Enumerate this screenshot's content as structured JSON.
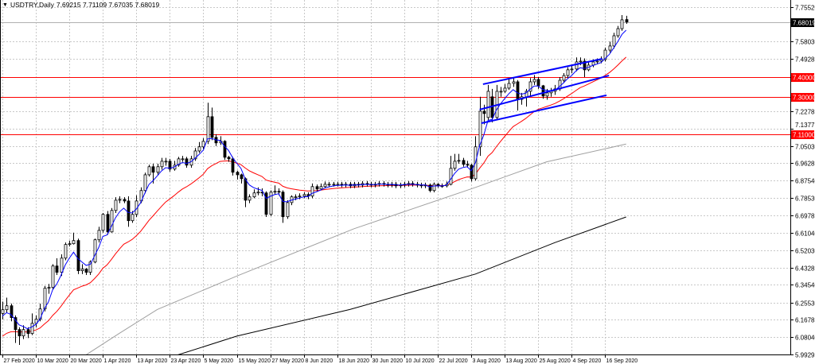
{
  "header": {
    "symbol_timeframe": "USDTRY,Daily",
    "ohlc_text": "7.69215 7.71109 7.67035 7.68019",
    "menu_icon": "triangle-down-icon"
  },
  "chart_data": {
    "type": "candlestick",
    "title": "USDTRY,Daily",
    "ylim": [
      5.9917,
      7.7915
    ],
    "grid": true,
    "colors": {
      "bull_body": "#ffffff",
      "bear_body": "#000000",
      "fast_ma": "#0000ff",
      "slow_ma": "#ff0000",
      "ma_long_1": "#a0a0a0",
      "ma_long_2": "#000000",
      "levels": "#ff0000",
      "trendlines": "#0000ff",
      "grid": "#c8c8c8",
      "current_price": "#000000"
    },
    "fast_ma": {
      "name": "fast moving average",
      "period": 5,
      "seed": 6.17
    },
    "slow_ma": {
      "name": "slow moving average",
      "period": 20,
      "seed": 6.07
    },
    "ma_long_1": {
      "name": "long moving average (grey)",
      "points": [
        [
          20,
          5.99
        ],
        [
          28,
          6.1
        ],
        [
          37,
          6.22
        ],
        [
          56,
          6.39
        ],
        [
          84,
          6.63
        ],
        [
          113,
          6.84
        ],
        [
          130,
          6.97
        ],
        [
          149,
          7.06
        ]
      ]
    },
    "ma_long_2": {
      "name": "long moving average (black)",
      "points": [
        [
          42,
          5.99
        ],
        [
          56,
          6.085
        ],
        [
          83,
          6.22
        ],
        [
          113,
          6.4
        ],
        [
          132,
          6.56
        ],
        [
          149,
          6.69
        ]
      ]
    },
    "horizontal_levels": [
      {
        "price": 7.4,
        "label": "7.40000"
      },
      {
        "price": 7.3,
        "label": "7.30000"
      },
      {
        "price": 7.11,
        "label": "7.11000"
      }
    ],
    "current_price": {
      "price": 7.68019,
      "label": "7.68019"
    },
    "trendlines": [
      {
        "name": "channel-upper",
        "from": [
          114.8,
          7.364
        ],
        "to": [
          143.3,
          7.493
        ]
      },
      {
        "name": "channel-middle",
        "from": [
          114.0,
          7.235
        ],
        "to": [
          144.9,
          7.408
        ]
      },
      {
        "name": "channel-lower",
        "from": [
          114.4,
          7.166
        ],
        "to": [
          144.3,
          7.308
        ]
      }
    ],
    "y_ticks": [
      {
        "value": 7.7552,
        "label": "7.75520"
      },
      {
        "value": 7.5803,
        "label": "7.58030"
      },
      {
        "value": 7.49285,
        "label": "7.49285"
      },
      {
        "value": 7.22785,
        "label": "7.22785"
      },
      {
        "value": 7.13775,
        "label": "7.13775"
      },
      {
        "value": 7.0503,
        "label": "7.05030"
      },
      {
        "value": 6.96285,
        "label": "6.96285"
      },
      {
        "value": 6.8754,
        "label": "6.87540"
      },
      {
        "value": 6.7853,
        "label": "6.78530"
      },
      {
        "value": 6.69785,
        "label": "6.69785"
      },
      {
        "value": 6.6104,
        "label": "6.61040"
      },
      {
        "value": 6.5203,
        "label": "6.52030"
      },
      {
        "value": 6.43285,
        "label": "6.43285"
      },
      {
        "value": 6.3454,
        "label": "6.34540"
      },
      {
        "value": 6.2553,
        "label": "6.25530"
      },
      {
        "value": 6.16785,
        "label": "6.16785"
      },
      {
        "value": 6.0804,
        "label": "6.08040"
      },
      {
        "value": 5.99295,
        "label": "5.99295"
      }
    ],
    "x_ticks": [
      {
        "bar": 0,
        "label": "27 Feb 2020"
      },
      {
        "bar": 8,
        "label": "10 Mar 2020"
      },
      {
        "bar": 16,
        "label": "20 Mar 2020"
      },
      {
        "bar": 24,
        "label": "1 Apr 2020"
      },
      {
        "bar": 32,
        "label": "13 Apr 2020"
      },
      {
        "bar": 40,
        "label": "23 Apr 2020"
      },
      {
        "bar": 48,
        "label": "5 May 2020"
      },
      {
        "bar": 56,
        "label": "15 May 2020"
      },
      {
        "bar": 64,
        "label": "27 May 2020"
      },
      {
        "bar": 72,
        "label": "8 Jun 2020"
      },
      {
        "bar": 80,
        "label": "18 Jun 2020"
      },
      {
        "bar": 88,
        "label": "30 Jun 2020"
      },
      {
        "bar": 96,
        "label": "10 Jul 2020"
      },
      {
        "bar": 104,
        "label": "22 Jul 2020"
      },
      {
        "bar": 112,
        "label": "3 Aug 2020"
      },
      {
        "bar": 120,
        "label": "13 Aug 2020"
      },
      {
        "bar": 128,
        "label": "25 Aug 2020"
      },
      {
        "bar": 136,
        "label": "4 Sep 2020"
      },
      {
        "bar": 144,
        "label": "16 Sep 2020"
      }
    ],
    "candles_format": [
      "open",
      "high",
      "low",
      "close"
    ],
    "candles": [
      [
        6.2,
        6.26,
        6.17,
        6.219
      ],
      [
        6.219,
        6.28,
        6.205,
        6.239
      ],
      [
        6.239,
        6.25,
        6.16,
        6.179
      ],
      [
        6.179,
        6.19,
        6.05,
        6.118
      ],
      [
        6.118,
        6.13,
        6.04,
        6.086
      ],
      [
        6.086,
        6.14,
        6.07,
        6.118
      ],
      [
        6.118,
        6.13,
        6.075,
        6.098
      ],
      [
        6.098,
        6.2,
        6.09,
        6.15
      ],
      [
        6.15,
        6.19,
        6.13,
        6.171
      ],
      [
        6.171,
        6.25,
        6.16,
        6.223
      ],
      [
        6.223,
        6.34,
        6.21,
        6.328
      ],
      [
        6.328,
        6.35,
        6.3,
        6.332
      ],
      [
        6.332,
        6.45,
        6.32,
        6.441
      ],
      [
        6.441,
        6.48,
        6.395,
        6.409
      ],
      [
        6.409,
        6.5,
        6.39,
        6.481
      ],
      [
        6.481,
        6.56,
        6.47,
        6.55
      ],
      [
        6.55,
        6.57,
        6.54,
        6.554
      ],
      [
        6.554,
        6.61,
        6.55,
        6.57
      ],
      [
        6.57,
        6.58,
        6.4,
        6.417
      ],
      [
        6.417,
        6.45,
        6.4,
        6.425
      ],
      [
        6.425,
        6.43,
        6.395,
        6.409
      ],
      [
        6.409,
        6.47,
        6.395,
        6.461
      ],
      [
        6.461,
        6.58,
        6.455,
        6.574
      ],
      [
        6.574,
        6.64,
        6.56,
        6.622
      ],
      [
        6.622,
        6.71,
        6.61,
        6.703
      ],
      [
        6.703,
        6.72,
        6.6,
        6.614
      ],
      [
        6.614,
        6.735,
        6.61,
        6.723
      ],
      [
        6.723,
        6.79,
        6.71,
        6.775
      ],
      [
        6.775,
        6.795,
        6.76,
        6.779
      ],
      [
        6.779,
        6.79,
        6.76,
        6.771
      ],
      [
        6.771,
        6.795,
        6.64,
        6.671
      ],
      [
        6.671,
        6.72,
        6.66,
        6.703
      ],
      [
        6.703,
        6.8,
        6.69,
        6.771
      ],
      [
        6.771,
        6.84,
        6.76,
        6.824
      ],
      [
        6.824,
        6.915,
        6.81,
        6.904
      ],
      [
        6.904,
        6.955,
        6.895,
        6.945
      ],
      [
        6.945,
        6.96,
        6.86,
        6.917
      ],
      [
        6.917,
        6.96,
        6.9,
        6.945
      ],
      [
        6.945,
        6.99,
        6.93,
        6.973
      ],
      [
        6.973,
        6.99,
        6.95,
        6.973
      ],
      [
        6.973,
        6.985,
        6.92,
        6.933
      ],
      [
        6.933,
        6.975,
        6.925,
        6.953
      ],
      [
        6.953,
        6.995,
        6.945,
        6.985
      ],
      [
        6.985,
        7.0,
        6.97,
        6.985
      ],
      [
        6.985,
        6.995,
        6.94,
        6.953
      ],
      [
        6.953,
        7.0,
        6.94,
        6.985
      ],
      [
        6.985,
        7.04,
        6.975,
        7.025
      ],
      [
        7.025,
        7.07,
        7.015,
        7.046
      ],
      [
        7.046,
        7.09,
        7.035,
        7.074
      ],
      [
        7.074,
        7.27,
        7.06,
        7.199
      ],
      [
        7.199,
        7.245,
        7.08,
        7.094
      ],
      [
        7.094,
        7.11,
        7.05,
        7.066
      ],
      [
        7.066,
        7.1,
        7.055,
        7.074
      ],
      [
        7.074,
        7.08,
        6.98,
        6.993
      ],
      [
        6.993,
        7.0,
        6.97,
        6.985
      ],
      [
        6.985,
        6.995,
        6.9,
        6.917
      ],
      [
        6.917,
        6.925,
        6.88,
        6.904
      ],
      [
        6.904,
        6.91,
        6.86,
        6.884
      ],
      [
        6.884,
        6.89,
        6.74,
        6.775
      ],
      [
        6.775,
        6.805,
        6.76,
        6.792
      ],
      [
        6.792,
        6.83,
        6.785,
        6.812
      ],
      [
        6.812,
        6.84,
        6.8,
        6.816
      ],
      [
        6.816,
        6.835,
        6.795,
        6.812
      ],
      [
        6.812,
        6.82,
        6.69,
        6.703
      ],
      [
        6.703,
        6.825,
        6.695,
        6.816
      ],
      [
        6.816,
        6.85,
        6.805,
        6.82
      ],
      [
        6.82,
        6.835,
        6.8,
        6.816
      ],
      [
        6.816,
        6.825,
        6.66,
        6.691
      ],
      [
        6.691,
        6.775,
        6.68,
        6.763
      ],
      [
        6.763,
        6.8,
        6.75,
        6.792
      ],
      [
        6.792,
        6.805,
        6.775,
        6.792
      ],
      [
        6.792,
        6.81,
        6.78,
        6.796
      ],
      [
        6.796,
        6.815,
        6.785,
        6.804
      ],
      [
        6.804,
        6.815,
        6.78,
        6.796
      ],
      [
        6.796,
        6.86,
        6.785,
        6.844
      ],
      [
        6.844,
        6.855,
        6.82,
        6.832
      ],
      [
        6.832,
        6.86,
        6.825,
        6.844
      ],
      [
        6.844,
        6.87,
        6.835,
        6.856
      ],
      [
        6.856,
        6.868,
        6.844,
        6.856
      ],
      [
        6.856,
        6.868,
        6.844,
        6.856
      ],
      [
        6.856,
        6.868,
        6.844,
        6.856
      ],
      [
        6.856,
        6.868,
        6.84,
        6.852
      ],
      [
        6.852,
        6.868,
        6.84,
        6.856
      ],
      [
        6.856,
        6.868,
        6.836,
        6.848
      ],
      [
        6.848,
        6.868,
        6.836,
        6.856
      ],
      [
        6.856,
        6.868,
        6.84,
        6.852
      ],
      [
        6.852,
        6.872,
        6.84,
        6.86
      ],
      [
        6.86,
        6.872,
        6.844,
        6.856
      ],
      [
        6.856,
        6.868,
        6.84,
        6.852
      ],
      [
        6.852,
        6.868,
        6.84,
        6.856
      ],
      [
        6.856,
        6.872,
        6.844,
        6.86
      ],
      [
        6.86,
        6.872,
        6.844,
        6.856
      ],
      [
        6.856,
        6.868,
        6.84,
        6.852
      ],
      [
        6.852,
        6.868,
        6.84,
        6.856
      ],
      [
        6.856,
        6.868,
        6.836,
        6.848
      ],
      [
        6.848,
        6.864,
        6.836,
        6.852
      ],
      [
        6.852,
        6.868,
        6.84,
        6.856
      ],
      [
        6.856,
        6.872,
        6.844,
        6.86
      ],
      [
        6.86,
        6.872,
        6.844,
        6.856
      ],
      [
        6.856,
        6.868,
        6.84,
        6.852
      ],
      [
        6.852,
        6.864,
        6.836,
        6.848
      ],
      [
        6.848,
        6.864,
        6.836,
        6.852
      ],
      [
        6.852,
        6.86,
        6.815,
        6.824
      ],
      [
        6.824,
        6.865,
        6.815,
        6.856
      ],
      [
        6.856,
        6.862,
        6.838,
        6.848
      ],
      [
        6.848,
        6.86,
        6.838,
        6.848
      ],
      [
        6.848,
        6.87,
        6.84,
        6.856
      ],
      [
        6.856,
        7.0,
        6.85,
        6.937
      ],
      [
        6.937,
        7.01,
        6.925,
        6.973
      ],
      [
        6.973,
        7.01,
        6.96,
        6.977
      ],
      [
        6.977,
        6.99,
        6.945,
        6.957
      ],
      [
        6.957,
        6.975,
        6.94,
        6.953
      ],
      [
        6.953,
        6.96,
        6.87,
        6.884
      ],
      [
        6.884,
        7.1,
        6.875,
        7.046
      ],
      [
        7.046,
        7.3,
        7.0,
        7.227
      ],
      [
        7.227,
        7.26,
        7.16,
        7.215
      ],
      [
        7.195,
        7.36,
        7.18,
        7.328
      ],
      [
        7.3,
        7.34,
        7.17,
        7.195
      ],
      [
        7.195,
        7.36,
        7.18,
        7.328
      ],
      [
        7.328,
        7.35,
        7.3,
        7.328
      ],
      [
        7.328,
        7.365,
        7.32,
        7.344
      ],
      [
        7.344,
        7.39,
        7.335,
        7.368
      ],
      [
        7.368,
        7.4,
        7.35,
        7.376
      ],
      [
        7.376,
        7.385,
        7.23,
        7.287
      ],
      [
        7.287,
        7.32,
        7.26,
        7.3
      ],
      [
        7.3,
        7.34,
        7.25,
        7.328
      ],
      [
        7.328,
        7.395,
        7.3,
        7.376
      ],
      [
        7.376,
        7.41,
        7.36,
        7.388
      ],
      [
        7.388,
        7.4,
        7.34,
        7.356
      ],
      [
        7.356,
        7.36,
        7.29,
        7.304
      ],
      [
        7.304,
        7.34,
        7.285,
        7.32
      ],
      [
        7.32,
        7.345,
        7.3,
        7.328
      ],
      [
        7.328,
        7.36,
        7.31,
        7.34
      ],
      [
        7.34,
        7.4,
        7.33,
        7.384
      ],
      [
        7.384,
        7.42,
        7.37,
        7.408
      ],
      [
        7.408,
        7.45,
        7.395,
        7.437
      ],
      [
        7.437,
        7.46,
        7.42,
        7.441
      ],
      [
        7.441,
        7.5,
        7.43,
        7.477
      ],
      [
        7.477,
        7.5,
        7.46,
        7.481
      ],
      [
        7.481,
        7.495,
        7.4,
        7.437
      ],
      [
        7.437,
        7.475,
        7.43,
        7.461
      ],
      [
        7.461,
        7.49,
        7.45,
        7.477
      ],
      [
        7.477,
        7.495,
        7.465,
        7.481
      ],
      [
        7.481,
        7.505,
        7.47,
        7.489
      ],
      [
        7.489,
        7.55,
        7.48,
        7.537
      ],
      [
        7.537,
        7.58,
        7.525,
        7.558
      ],
      [
        7.558,
        7.625,
        7.545,
        7.61
      ],
      [
        7.61,
        7.66,
        7.6,
        7.646
      ],
      [
        7.646,
        7.715,
        7.635,
        7.691
      ],
      [
        7.69215,
        7.71109,
        7.67035,
        7.68019
      ]
    ]
  }
}
